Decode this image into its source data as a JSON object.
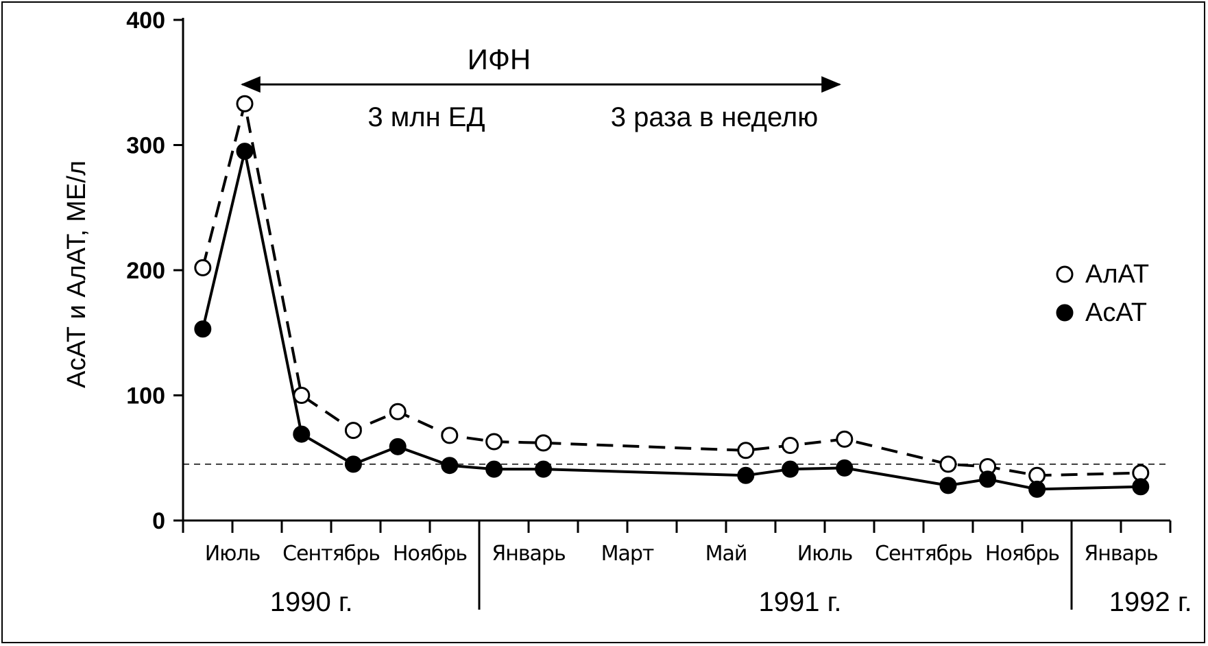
{
  "chart_data": {
    "type": "line",
    "title": "",
    "ylabel": "АсАТ и АлАТ, МЕ/л",
    "ylim": [
      0,
      400
    ],
    "yticks": [
      "0",
      "100",
      "200",
      "300",
      "400"
    ],
    "x_unit": "months since start of June 1990",
    "xlim": [
      0,
      20
    ],
    "month_labels": [
      {
        "label": "Июль",
        "x": 1
      },
      {
        "label": "Сентябрь",
        "x": 3
      },
      {
        "label": "Ноябрь",
        "x": 5
      },
      {
        "label": "Январь",
        "x": 7
      },
      {
        "label": "Март",
        "x": 9
      },
      {
        "label": "Май",
        "x": 11
      },
      {
        "label": "Июль",
        "x": 13
      },
      {
        "label": "Сентябрь",
        "x": 15
      },
      {
        "label": "Ноябрь",
        "x": 17
      },
      {
        "label": "Январь",
        "x": 19
      }
    ],
    "year_labels": [
      {
        "label": "1990 г.",
        "x": 2.6
      },
      {
        "label": "1991 г.",
        "x": 12.5
      },
      {
        "label": "1992 г.",
        "x": 19.6
      }
    ],
    "year_dividers": [
      6,
      18
    ],
    "annotation": {
      "label": "ИФН",
      "dose": "3 млн ЕД",
      "schedule": "3 раза в неделю",
      "x_start": 1.2,
      "x_end": 13.3,
      "y": 355
    },
    "reference_line": {
      "y": 45
    },
    "legend": {
      "position": "right",
      "entries": [
        "АлАТ",
        "АсАТ"
      ]
    },
    "series": [
      {
        "name": "АлАТ",
        "marker": "open-circle",
        "line": "dashed",
        "points": [
          [
            0.4,
            202
          ],
          [
            1.25,
            333
          ],
          [
            2.4,
            100
          ],
          [
            3.45,
            72
          ],
          [
            4.35,
            87
          ],
          [
            5.4,
            68
          ],
          [
            6.3,
            63
          ],
          [
            7.3,
            62
          ],
          [
            11.4,
            56
          ],
          [
            12.3,
            60
          ],
          [
            13.4,
            65
          ],
          [
            15.5,
            45
          ],
          [
            16.3,
            43
          ],
          [
            17.3,
            36
          ],
          [
            19.4,
            38
          ]
        ]
      },
      {
        "name": "АсАТ",
        "marker": "filled-circle",
        "line": "solid",
        "points": [
          [
            0.4,
            153
          ],
          [
            1.25,
            295
          ],
          [
            2.4,
            69
          ],
          [
            3.45,
            45
          ],
          [
            4.35,
            59
          ],
          [
            5.4,
            44
          ],
          [
            6.3,
            41
          ],
          [
            7.3,
            41
          ],
          [
            11.4,
            36
          ],
          [
            12.3,
            41
          ],
          [
            13.4,
            42
          ],
          [
            15.5,
            28
          ],
          [
            16.3,
            33
          ],
          [
            17.3,
            25
          ],
          [
            19.4,
            27
          ]
        ]
      }
    ]
  }
}
